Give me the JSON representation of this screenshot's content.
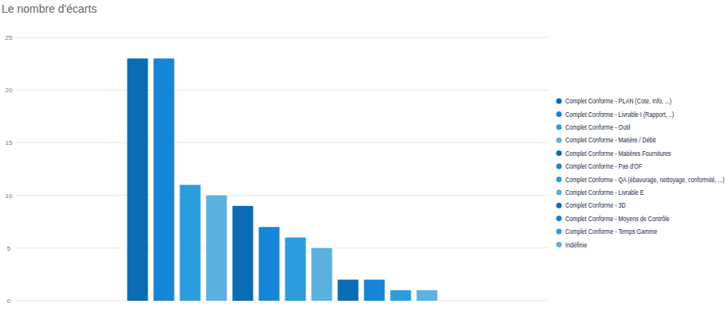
{
  "chart_data": {
    "type": "bar",
    "title": "Le nombre d'écarts",
    "categories": [
      "Complet Conforme - PLAN (Cote, Info, ...)",
      "Complet Conforme - Livrable I (Rapport, ..)",
      "Complet Conforme - Outil",
      "Complet Conforme - Matière / Débit",
      "Complet Conforme - Matières Fournitures",
      "Complet Conforme - Pas d'OF",
      "Complet Conforme - QA (ébavurage, nettoyage, conformité, ...)",
      "Complet Conforme - Livrable E",
      "Complet Conforme - 3D",
      "Complet Conforme - Moyens de Contrôle",
      "Complet Conforme - Temps Gamme",
      "Indéfinie"
    ],
    "values": [
      23,
      23,
      11,
      10,
      9,
      7,
      6,
      5,
      2,
      2,
      1,
      1
    ],
    "colors": [
      "#0a6cb5",
      "#1585d8",
      "#2b9ddd",
      "#5bb2e1",
      "#0a6cb5",
      "#1585d8",
      "#2b9ddd",
      "#5bb2e1",
      "#0a6cb5",
      "#1585d8",
      "#2b9ddd",
      "#5bb2e1"
    ],
    "ylim": [
      0,
      25
    ],
    "yticks": [
      0,
      5,
      10,
      15,
      20,
      25
    ],
    "grid": true,
    "tick_labels": "y",
    "legend": "right"
  }
}
